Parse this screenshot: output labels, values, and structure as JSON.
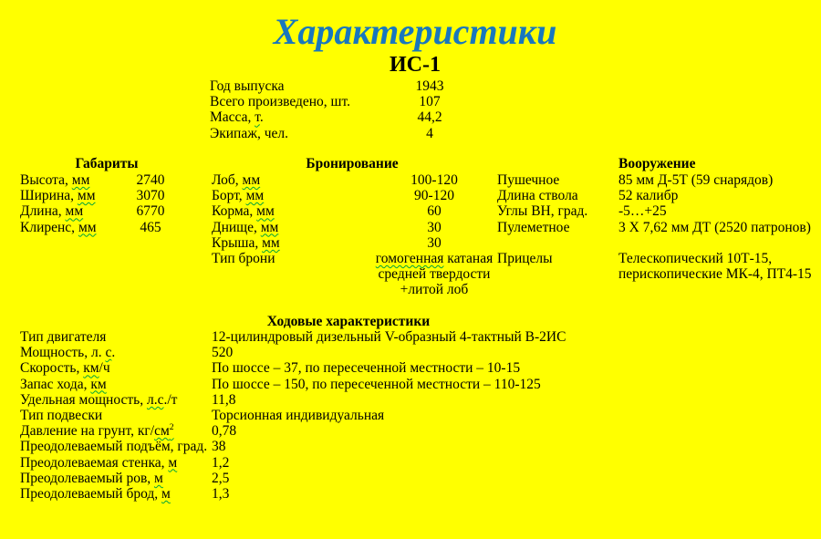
{
  "page": {
    "title": "Характеристики",
    "subtitle": "ИС-1",
    "background_color": "#FFFF00",
    "title_color": "#1877BE",
    "squiggle_color": "#00A33C"
  },
  "general": {
    "rows": [
      {
        "label": "Год выпуска",
        "value": "1943"
      },
      {
        "label": "Всего произведено, шт.",
        "value": "107"
      },
      {
        "label": "Масса, ",
        "flag": "т",
        "suffix": ".",
        "value": "44,2"
      },
      {
        "label": "Экипаж, чел.",
        "value": "4"
      }
    ]
  },
  "dimensions": {
    "header": "Габариты",
    "rows": [
      {
        "label": "Высота, ",
        "flag": "мм",
        "value": "2740"
      },
      {
        "label": "Ширина, ",
        "flag": "мм",
        "value": "3070"
      },
      {
        "label": "Длина, ",
        "flag": "мм",
        "value": "6770"
      },
      {
        "label": "Клиренс, ",
        "flag": "мм",
        "value": "465"
      }
    ]
  },
  "armor": {
    "header": "Бронирование",
    "rows": [
      {
        "label": "Лоб, ",
        "flag": "мм",
        "value": "100-120"
      },
      {
        "label": "Борт, ",
        "flag": "мм",
        "value": "90-120"
      },
      {
        "label": "Корма, ",
        "flag": "мм",
        "value": "60"
      },
      {
        "label": "Днище, ",
        "flag": "мм",
        "value": "30"
      },
      {
        "label": "Крыша, ",
        "flag": "мм",
        "value": "30"
      },
      {
        "label": "Тип брони",
        "value_flag": "гомогенная",
        "value": " катаная",
        "value_line2": "средней твердости",
        "value_line3": "+литой лоб"
      }
    ]
  },
  "armament": {
    "header": "Вооружение",
    "rows": [
      {
        "label": "Пушечное",
        "value": "85 мм Д-5Т (59 снарядов)"
      },
      {
        "label": "Длина ствола",
        "value": "52 калибр"
      },
      {
        "label": "Углы ВН, град.",
        "value": "-5…+25"
      },
      {
        "label": "Пулеметное",
        "value": "3 Х 7,62 мм ДТ (2520 патронов)"
      },
      {
        "label": "",
        "value": ""
      },
      {
        "label": "Прицелы",
        "value": "Телескопический 10Т-15,"
      },
      {
        "label": "",
        "value": "перископические МК-4, ПТ4-15"
      }
    ]
  },
  "mobility": {
    "header": "Ходовые характеристики",
    "rows": [
      {
        "label": "Тип двигателя",
        "value": "12-цилиндровый дизельный V-образный 4-тактный В-2ИС"
      },
      {
        "label": "Мощность, л. ",
        "flag": "с",
        "suffix": ".",
        "value": "520"
      },
      {
        "label": "Скорость, ",
        "flag": "км",
        "suffix": "/ч",
        "value": "По шоссе – 37, по пересеченной местности – 10-15"
      },
      {
        "label": "Запас хода, ",
        "flag": "км",
        "value": "По шоссе – 150, по пересеченной местности – 110-125"
      },
      {
        "label": "Удельная мощность, ",
        "flag": "л.с",
        "suffix": "./т",
        "value": "11,8"
      },
      {
        "label": "Тип подвески",
        "value": "Торсионная индивидуальная"
      },
      {
        "label": "Давление на грунт, кг/",
        "flag": "см",
        "flag_sup": "2",
        "value": "0,78"
      },
      {
        "label": "Преодолеваемый подъём, град.",
        "value": "38"
      },
      {
        "label": "Преодолеваемая стенка, ",
        "flag": "м",
        "value": "1,2"
      },
      {
        "label": "Преодолеваемый ров, ",
        "flag": "м",
        "value": "2,5"
      },
      {
        "label": "Преодолеваемый брод, ",
        "flag": "м",
        "value": "1,3"
      }
    ]
  }
}
